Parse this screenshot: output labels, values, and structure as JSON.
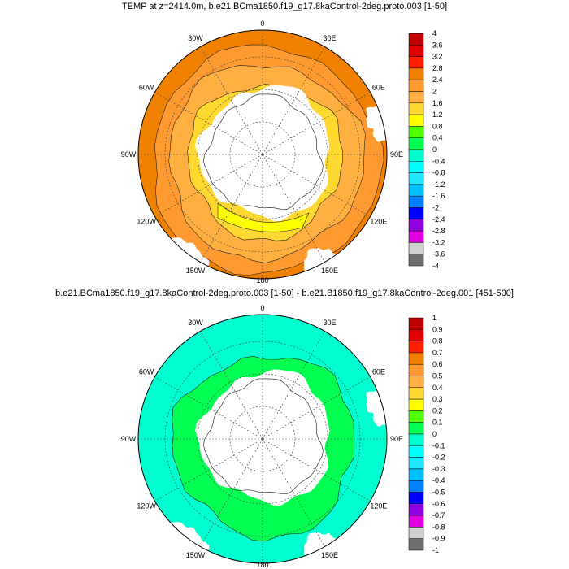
{
  "chart_data": [
    {
      "type": "heatmap",
      "projection": "south-polar-stereographic",
      "title": "TEMP at z=2414.0m, b.e21.BCma1850.f19_g17.8kaControl-2deg.proto.003 [1-50]",
      "lon_labels": [
        "0",
        "30E",
        "60E",
        "90E",
        "120E",
        "150E",
        "180",
        "150W",
        "120W",
        "90W",
        "60W",
        "30W"
      ],
      "colorbar_labels": [
        "4",
        "3.6",
        "3.2",
        "2.8",
        "2.4",
        "2",
        "1.6",
        "1.2",
        "0.8",
        "0.4",
        "0",
        "-0.4",
        "-0.8",
        "-1.2",
        "-1.6",
        "-2",
        "-2.4",
        "-2.8",
        "-3.2",
        "-3.6",
        "-4"
      ],
      "range": [
        -4,
        4
      ]
    },
    {
      "type": "heatmap",
      "projection": "south-polar-stereographic",
      "title": "b.e21.BCma1850.f19_g17.8kaControl-2deg.proto.003 [1-50] - b.e21.B1850.f19_g17.8kaControl-2deg.001 [451-500]",
      "lon_labels": [
        "0",
        "30E",
        "60E",
        "90E",
        "120E",
        "150E",
        "180",
        "150W",
        "120W",
        "90W",
        "60W",
        "30W"
      ],
      "colorbar_labels": [
        "1",
        "0.9",
        "0.8",
        "0.7",
        "0.6",
        "0.5",
        "0.4",
        "0.3",
        "0.2",
        "0.1",
        "0",
        "-0.1",
        "-0.2",
        "-0.3",
        "-0.4",
        "-0.5",
        "-0.6",
        "-0.7",
        "-0.8",
        "-0.9",
        "-1"
      ],
      "range": [
        -1,
        1
      ]
    }
  ],
  "colors": [
    "#c00000",
    "#e00000",
    "#ff2000",
    "#f08000",
    "#ff9a30",
    "#ffb040",
    "#ffd830",
    "#ffff00",
    "#50ff00",
    "#00ff50",
    "#00ffd0",
    "#00ffff",
    "#20e8ff",
    "#00c0ff",
    "#0080ff",
    "#0000ff",
    "#9000e0",
    "#e000e0",
    "#d0d0d0",
    "#707070"
  ]
}
